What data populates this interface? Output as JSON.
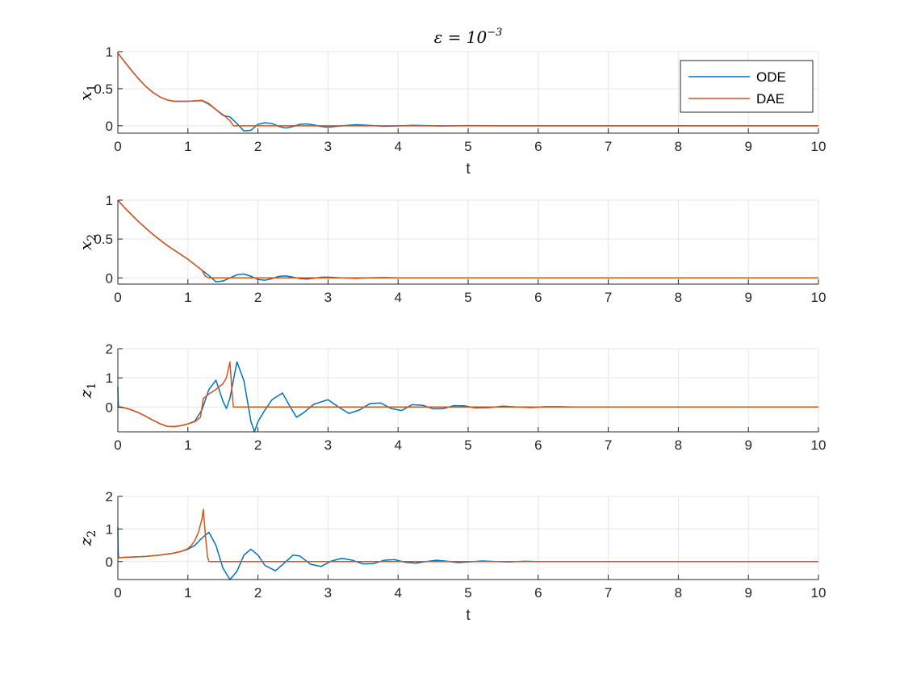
{
  "figure": {
    "title": "ε = 10",
    "title_exponent": "−3",
    "legend": {
      "placement": "top-right",
      "entries": [
        "ODE",
        "DAE"
      ]
    },
    "colors": {
      "ODE": "#0072BD",
      "DAE": "#D95319",
      "grid": "#e6e6e6",
      "axis": "#262626"
    }
  },
  "chart_data": [
    {
      "type": "line",
      "ylabel_main": "x",
      "ylabel_sub": "1",
      "xlabel": "t",
      "xlim": [
        0,
        10
      ],
      "ylim": [
        -0.1,
        1.0
      ],
      "xticks": [
        "0",
        "1",
        "2",
        "3",
        "4",
        "5",
        "6",
        "7",
        "8",
        "9",
        "10"
      ],
      "yticks": [
        {
          "v": 0,
          "label": "0"
        },
        {
          "v": 0.5,
          "label": "0.5"
        },
        {
          "v": 1,
          "label": "1"
        }
      ],
      "grid": true,
      "series": [
        {
          "name": "ODE",
          "x": [
            0,
            0.1,
            0.2,
            0.3,
            0.4,
            0.5,
            0.6,
            0.7,
            0.8,
            0.9,
            1.0,
            1.1,
            1.2,
            1.3,
            1.4,
            1.5,
            1.6,
            1.7,
            1.8,
            1.9,
            2.0,
            2.1,
            2.2,
            2.3,
            2.4,
            2.5,
            2.6,
            2.7,
            2.8,
            2.9,
            3.0,
            3.2,
            3.4,
            3.6,
            3.8,
            4.0,
            4.2,
            4.4,
            4.6,
            4.8,
            5.0,
            5.5,
            6,
            7,
            8,
            9,
            10
          ],
          "y": [
            0.98,
            0.86,
            0.74,
            0.63,
            0.53,
            0.45,
            0.39,
            0.35,
            0.33,
            0.33,
            0.33,
            0.335,
            0.34,
            0.29,
            0.22,
            0.14,
            0.12,
            0.03,
            -0.07,
            -0.06,
            0.02,
            0.04,
            0.03,
            -0.01,
            -0.03,
            -0.01,
            0.02,
            0.025,
            0.01,
            -0.01,
            -0.02,
            0.0,
            0.015,
            0.005,
            -0.008,
            -0.002,
            0.006,
            0.002,
            -0.003,
            0.0,
            0.002,
            0.0,
            0.0,
            0.0,
            0.0,
            0.0,
            0.0
          ]
        },
        {
          "name": "DAE",
          "x": [
            0,
            0.1,
            0.2,
            0.3,
            0.4,
            0.5,
            0.6,
            0.7,
            0.8,
            0.9,
            1.0,
            1.1,
            1.2,
            1.3,
            1.4,
            1.5,
            1.6,
            1.65,
            1.8,
            2,
            3,
            4,
            5,
            6,
            7,
            8,
            9,
            10
          ],
          "y": [
            0.98,
            0.86,
            0.74,
            0.63,
            0.53,
            0.45,
            0.39,
            0.35,
            0.33,
            0.33,
            0.33,
            0.335,
            0.345,
            0.3,
            0.22,
            0.15,
            0.07,
            0.0,
            0.0,
            0.0,
            0.0,
            0.0,
            0.0,
            0.0,
            0.0,
            0.0,
            0.0,
            0.0
          ]
        }
      ]
    },
    {
      "type": "line",
      "ylabel_main": "x",
      "ylabel_sub": "2",
      "xlabel": "",
      "xlim": [
        0,
        10
      ],
      "ylim": [
        -0.08,
        1.0
      ],
      "xticks": [
        "0",
        "1",
        "2",
        "3",
        "4",
        "5",
        "6",
        "7",
        "8",
        "9",
        "10"
      ],
      "yticks": [
        {
          "v": 0,
          "label": "0"
        },
        {
          "v": 0.5,
          "label": "0.5"
        },
        {
          "v": 1,
          "label": "1"
        }
      ],
      "grid": true,
      "series": [
        {
          "name": "ODE",
          "x": [
            0,
            0.1,
            0.2,
            0.3,
            0.4,
            0.5,
            0.6,
            0.7,
            0.8,
            0.9,
            1.0,
            1.1,
            1.2,
            1.3,
            1.4,
            1.5,
            1.6,
            1.7,
            1.8,
            1.9,
            2.0,
            2.1,
            2.2,
            2.3,
            2.4,
            2.5,
            2.6,
            2.7,
            2.8,
            2.9,
            3.0,
            3.2,
            3.4,
            3.6,
            3.8,
            4.0,
            4.5,
            5,
            6,
            7,
            8,
            9,
            10
          ],
          "y": [
            1.0,
            0.9,
            0.81,
            0.72,
            0.64,
            0.56,
            0.49,
            0.42,
            0.36,
            0.3,
            0.24,
            0.17,
            0.1,
            0.03,
            -0.05,
            -0.04,
            0.0,
            0.04,
            0.05,
            0.02,
            -0.02,
            -0.03,
            -0.01,
            0.02,
            0.025,
            0.01,
            -0.01,
            -0.015,
            -0.005,
            0.008,
            0.01,
            0.0,
            -0.006,
            0.002,
            0.004,
            0.0,
            0.0,
            0.0,
            0.0,
            0.0,
            0.0,
            0.0,
            0.0
          ]
        },
        {
          "name": "DAE",
          "x": [
            0,
            0.1,
            0.2,
            0.3,
            0.4,
            0.5,
            0.6,
            0.7,
            0.8,
            0.9,
            1.0,
            1.1,
            1.2,
            1.25,
            1.3,
            2,
            3,
            4,
            5,
            6,
            7,
            8,
            9,
            10
          ],
          "y": [
            1.0,
            0.9,
            0.81,
            0.72,
            0.64,
            0.56,
            0.49,
            0.42,
            0.36,
            0.3,
            0.24,
            0.17,
            0.1,
            0.02,
            0.0,
            0.0,
            0.0,
            0.0,
            0.0,
            0.0,
            0.0,
            0.0,
            0.0,
            0.0
          ]
        }
      ]
    },
    {
      "type": "line",
      "ylabel_main": "z",
      "ylabel_sub": "1",
      "xlabel": "",
      "xlim": [
        0,
        10
      ],
      "ylim": [
        -0.85,
        2.0
      ],
      "xticks": [
        "0",
        "1",
        "2",
        "3",
        "4",
        "5",
        "6",
        "7",
        "8",
        "9",
        "10"
      ],
      "yticks": [
        {
          "v": 0,
          "label": "0"
        },
        {
          "v": 1,
          "label": "1"
        },
        {
          "v": 2,
          "label": "2"
        }
      ],
      "grid": true,
      "series": [
        {
          "name": "ODE",
          "x": [
            0,
            0.005,
            0.01,
            0.1,
            0.2,
            0.3,
            0.4,
            0.5,
            0.6,
            0.7,
            0.8,
            0.9,
            1.0,
            1.1,
            1.2,
            1.3,
            1.4,
            1.5,
            1.55,
            1.6,
            1.7,
            1.8,
            1.9,
            1.95,
            2.0,
            2.1,
            2.2,
            2.35,
            2.45,
            2.55,
            2.65,
            2.8,
            3.0,
            3.15,
            3.3,
            3.45,
            3.6,
            3.75,
            3.9,
            4.05,
            4.2,
            4.35,
            4.5,
            4.65,
            4.8,
            4.95,
            5.1,
            5.3,
            5.5,
            5.7,
            5.9,
            6.1,
            6.3,
            6.5,
            7,
            8,
            9,
            10
          ],
          "y": [
            0.7,
            0.2,
            0.0,
            -0.03,
            -0.1,
            -0.2,
            -0.32,
            -0.45,
            -0.57,
            -0.66,
            -0.67,
            -0.64,
            -0.58,
            -0.48,
            -0.1,
            0.6,
            0.92,
            0.2,
            -0.05,
            0.3,
            1.55,
            0.9,
            -0.5,
            -0.85,
            -0.5,
            -0.1,
            0.25,
            0.48,
            0.05,
            -0.35,
            -0.2,
            0.1,
            0.25,
            0.0,
            -0.22,
            -0.1,
            0.12,
            0.14,
            -0.05,
            -0.12,
            0.08,
            0.06,
            -0.06,
            -0.05,
            0.05,
            0.04,
            -0.03,
            -0.02,
            0.03,
            0.0,
            -0.02,
            0.01,
            0.01,
            0.0,
            0.0,
            0.0,
            0.0,
            0.0
          ]
        },
        {
          "name": "DAE",
          "x": [
            0,
            0.1,
            0.2,
            0.3,
            0.4,
            0.5,
            0.6,
            0.7,
            0.8,
            0.9,
            1.0,
            1.1,
            1.18,
            1.22,
            1.25,
            1.3,
            1.4,
            1.5,
            1.55,
            1.6,
            1.63,
            1.65,
            1.7,
            2,
            3,
            4,
            5,
            6,
            7,
            8,
            9,
            10
          ],
          "y": [
            0.0,
            -0.03,
            -0.1,
            -0.2,
            -0.32,
            -0.45,
            -0.57,
            -0.66,
            -0.67,
            -0.64,
            -0.58,
            -0.5,
            -0.35,
            0.3,
            0.35,
            0.45,
            0.6,
            0.8,
            1.0,
            1.55,
            0.5,
            0.0,
            0.0,
            0.0,
            0.0,
            0.0,
            0.0,
            0.0,
            0.0,
            0.0,
            0.0,
            0.0
          ]
        }
      ]
    },
    {
      "type": "line",
      "ylabel_main": "z",
      "ylabel_sub": "2",
      "xlabel": "t",
      "xlim": [
        0,
        10
      ],
      "ylim": [
        -0.55,
        2.0
      ],
      "xticks": [
        "0",
        "1",
        "2",
        "3",
        "4",
        "5",
        "6",
        "7",
        "8",
        "9",
        "10"
      ],
      "yticks": [
        {
          "v": 0,
          "label": "0"
        },
        {
          "v": 1,
          "label": "1"
        },
        {
          "v": 2,
          "label": "2"
        }
      ],
      "grid": true,
      "series": [
        {
          "name": "ODE",
          "x": [
            0,
            0.005,
            0.01,
            0.1,
            0.2,
            0.3,
            0.4,
            0.5,
            0.6,
            0.7,
            0.8,
            0.9,
            1.0,
            1.1,
            1.2,
            1.3,
            1.4,
            1.5,
            1.6,
            1.7,
            1.8,
            1.9,
            2.0,
            2.1,
            2.25,
            2.4,
            2.5,
            2.6,
            2.75,
            2.9,
            3.05,
            3.2,
            3.35,
            3.5,
            3.65,
            3.8,
            3.95,
            4.1,
            4.25,
            4.4,
            4.55,
            4.7,
            4.85,
            5.0,
            5.2,
            5.4,
            5.6,
            5.8,
            6.0,
            6.5,
            7,
            8,
            9,
            10
          ],
          "y": [
            1.05,
            0.3,
            0.12,
            0.13,
            0.14,
            0.15,
            0.16,
            0.18,
            0.2,
            0.23,
            0.26,
            0.31,
            0.38,
            0.5,
            0.72,
            0.9,
            0.5,
            -0.2,
            -0.55,
            -0.3,
            0.2,
            0.38,
            0.2,
            -0.12,
            -0.28,
            0.0,
            0.2,
            0.17,
            -0.08,
            -0.15,
            0.02,
            0.1,
            0.04,
            -0.07,
            -0.06,
            0.04,
            0.06,
            -0.02,
            -0.05,
            0.0,
            0.04,
            0.01,
            -0.03,
            -0.01,
            0.02,
            0.0,
            -0.01,
            0.01,
            0.0,
            0.0,
            0.0,
            0.0,
            0.0,
            0.0
          ]
        },
        {
          "name": "DAE",
          "x": [
            0,
            0.1,
            0.2,
            0.3,
            0.4,
            0.5,
            0.6,
            0.7,
            0.8,
            0.9,
            1.0,
            1.05,
            1.1,
            1.15,
            1.2,
            1.22,
            1.25,
            1.28,
            1.3,
            1.35,
            2,
            3,
            4,
            5,
            6,
            7,
            8,
            9,
            10
          ],
          "y": [
            0.12,
            0.13,
            0.14,
            0.15,
            0.16,
            0.18,
            0.2,
            0.23,
            0.26,
            0.31,
            0.4,
            0.5,
            0.65,
            0.9,
            1.3,
            1.6,
            0.8,
            0.15,
            0.0,
            0.0,
            0.0,
            0.0,
            0.0,
            0.0,
            0.0,
            0.0,
            0.0,
            0.0,
            0.0
          ]
        }
      ]
    }
  ]
}
